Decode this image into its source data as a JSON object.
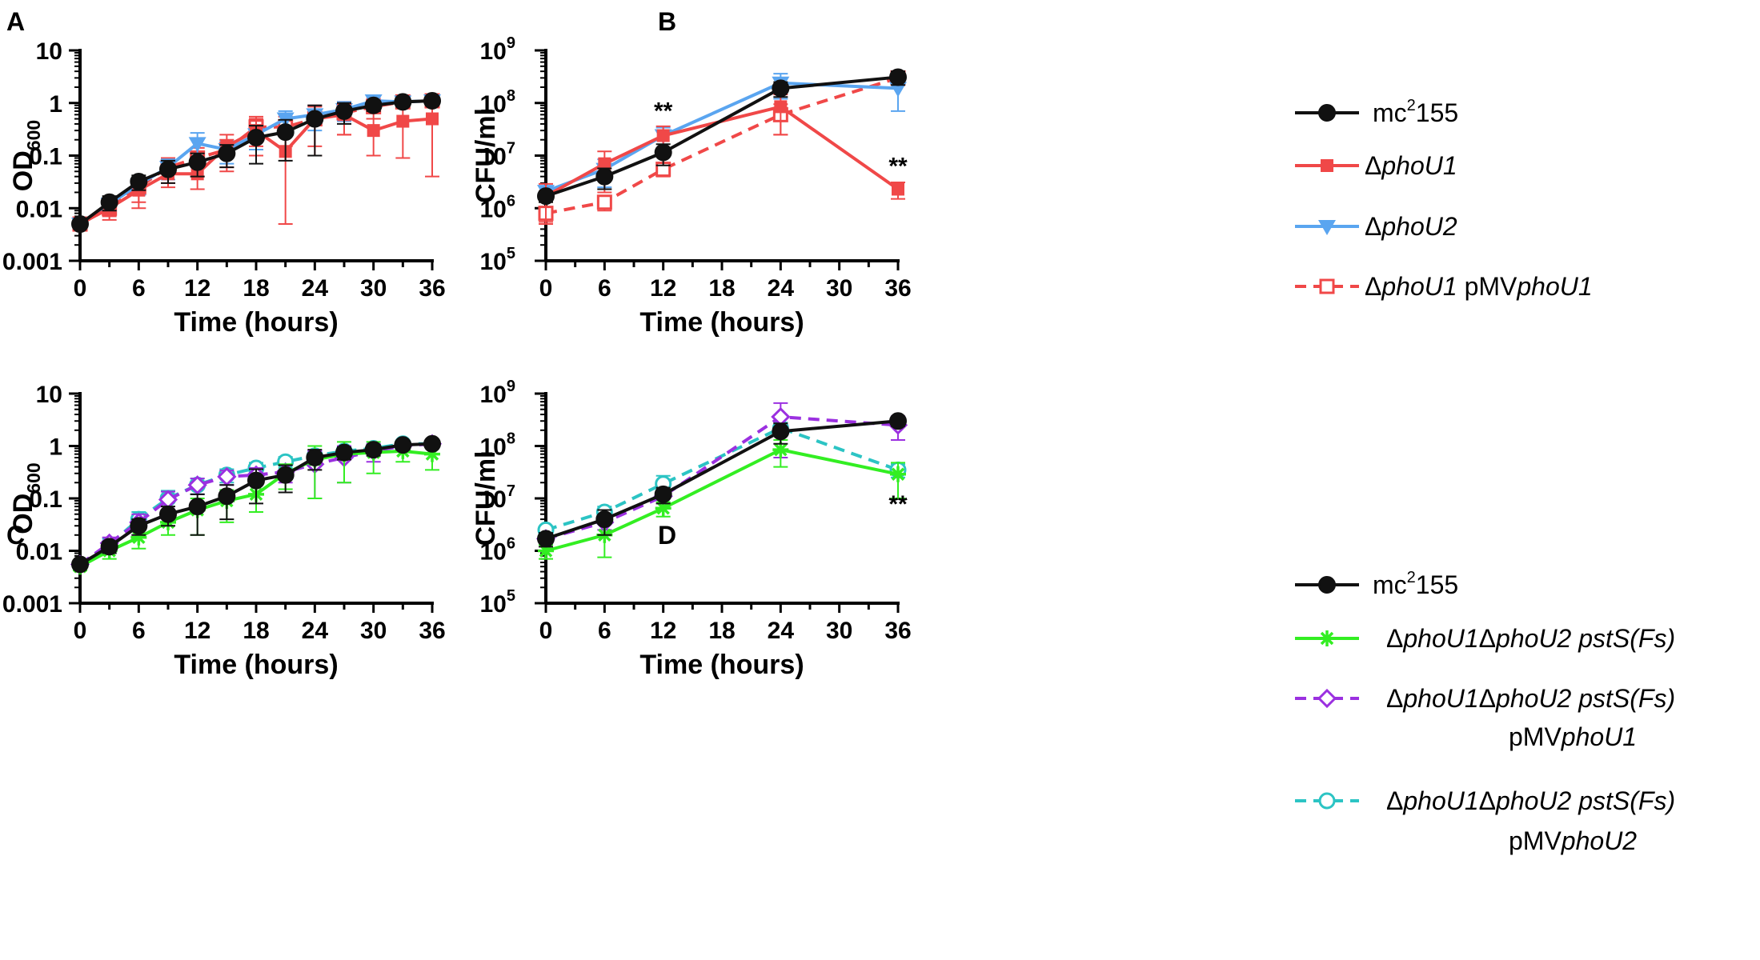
{
  "chart_data": [
    {
      "type": "line",
      "panel": "A",
      "xlabel": "Time (hours)",
      "ylabel": "OD600",
      "ylabel_main": "OD",
      "ylabel_sub": "600",
      "yscale": "log",
      "xlim": [
        0,
        36
      ],
      "ylim": [
        0.001,
        10
      ],
      "xticks": [
        "0",
        "6",
        "12",
        "18",
        "24",
        "30",
        "36"
      ],
      "yticks": [
        "0.001",
        "0.01",
        "0.1",
        "1",
        "10"
      ],
      "annotations": [],
      "series": [
        {
          "name": "ΔphoU1 pMVphoU1",
          "color": "#f04848",
          "dash": true,
          "marker": "square-open",
          "x": [
            0,
            3,
            6,
            9,
            12,
            15,
            18,
            21,
            24,
            27,
            30,
            33,
            36
          ],
          "y": [
            0.005,
            0.01,
            0.025,
            0.06,
            0.09,
            0.13,
            0.35,
            0.35,
            0.5,
            0.65,
            0.85,
            1.05,
            1.1
          ],
          "err": [
            0.0006,
            0.003,
            0.012,
            0.03,
            0.05,
            0.07,
            0.2,
            0.2,
            0.35,
            0.4,
            0.35,
            0.2,
            0.2
          ]
        },
        {
          "name": "ΔphoU2",
          "color": "#5aa5f0",
          "dash": false,
          "marker": "triangle-down",
          "x": [
            0,
            3,
            6,
            9,
            12,
            15,
            18,
            21,
            24,
            27,
            30,
            33,
            36
          ],
          "y": [
            0.005,
            0.012,
            0.028,
            0.06,
            0.17,
            0.13,
            0.25,
            0.5,
            0.6,
            0.75,
            1.1,
            1.05,
            1.1
          ],
          "err": [
            0.0006,
            0.003,
            0.01,
            0.025,
            0.1,
            0.06,
            0.12,
            0.2,
            0.3,
            0.3,
            0.25,
            0.2,
            0.2
          ]
        },
        {
          "name": "ΔphoU1",
          "color": "#f04848",
          "dash": false,
          "marker": "square",
          "x": [
            0,
            3,
            6,
            9,
            12,
            15,
            18,
            21,
            24,
            27,
            30,
            33,
            36
          ],
          "y": [
            0.005,
            0.01,
            0.022,
            0.045,
            0.045,
            0.15,
            0.3,
            0.12,
            0.5,
            0.6,
            0.3,
            0.45,
            0.5
          ],
          "err": [
            0.0006,
            0.004,
            0.012,
            0.02,
            0.022,
            0.1,
            0.2,
            0.115,
            0.4,
            0.35,
            0.2,
            0.36,
            0.46
          ]
        },
        {
          "name": "mc2155",
          "color": "#111111",
          "dash": false,
          "marker": "circle",
          "x": [
            0,
            3,
            6,
            9,
            12,
            15,
            18,
            21,
            24,
            27,
            30,
            33,
            36
          ],
          "y": [
            0.005,
            0.013,
            0.032,
            0.055,
            0.075,
            0.11,
            0.22,
            0.28,
            0.5,
            0.7,
            0.9,
            1.05,
            1.1
          ],
          "err": [
            0.0006,
            0.004,
            0.01,
            0.025,
            0.035,
            0.05,
            0.15,
            0.2,
            0.4,
            0.3,
            0.2,
            0.2,
            0.2
          ]
        }
      ]
    },
    {
      "type": "line",
      "panel": "B",
      "xlabel": "Time (hours)",
      "ylabel": "CFU/ml",
      "yscale": "log",
      "xlim": [
        0,
        36
      ],
      "ylim": [
        100000,
        1000000000
      ],
      "xticks": [
        "0",
        "6",
        "12",
        "18",
        "24",
        "30",
        "36"
      ],
      "ytick_exponents": [
        "5",
        "6",
        "7",
        "8",
        "9"
      ],
      "ytick_base": "10",
      "annotations": [
        {
          "text": "**",
          "x": 12,
          "y": 50000000
        },
        {
          "text": "**",
          "x": 36,
          "y": 4500000
        }
      ],
      "series": [
        {
          "name": "ΔphoU1 pMVphoU1",
          "color": "#f04848",
          "dash": true,
          "marker": "square-open",
          "x": [
            0,
            6,
            12,
            24,
            36
          ],
          "y": [
            800000,
            1300000,
            5500000,
            60000000,
            300000000
          ],
          "err": [
            250000,
            400000,
            1500000,
            35000000,
            80000000
          ]
        },
        {
          "name": "ΔphoU2",
          "color": "#5aa5f0",
          "dash": false,
          "marker": "triangle-down",
          "x": [
            0,
            6,
            12,
            24,
            36
          ],
          "y": [
            2100000,
            5500000,
            24000000,
            240000000,
            190000000
          ],
          "err": [
            500000,
            3000000,
            10000000,
            120000000,
            120000000
          ]
        },
        {
          "name": "ΔphoU1",
          "color": "#f04848",
          "dash": false,
          "marker": "square",
          "x": [
            0,
            6,
            12,
            24,
            36
          ],
          "y": [
            1700000,
            7000000,
            24000000,
            85000000,
            2300000
          ],
          "err": [
            1200000,
            5000000,
            12000000,
            60000000,
            800000
          ]
        },
        {
          "name": "mc2155",
          "color": "#111111",
          "dash": false,
          "marker": "circle",
          "x": [
            0,
            6,
            12,
            24,
            36
          ],
          "y": [
            1700000,
            4000000,
            11500000,
            190000000,
            310000000
          ],
          "err": [
            400000,
            1700000,
            5000000,
            60000000,
            90000000
          ]
        }
      ]
    },
    {
      "type": "line",
      "panel": "C",
      "xlabel": "Time (hours)",
      "ylabel": "OD600",
      "ylabel_main": "OD",
      "ylabel_sub": "600",
      "yscale": "log",
      "xlim": [
        0,
        36
      ],
      "ylim": [
        0.001,
        10
      ],
      "xticks": [
        "0",
        "6",
        "12",
        "18",
        "24",
        "30",
        "36"
      ],
      "yticks": [
        "0.001",
        "0.01",
        "0.1",
        "1",
        "10"
      ],
      "annotations": [],
      "series": [
        {
          "name": "ΔphoU1ΔphoU2 pstS(Fs) pMVphoU2",
          "color": "#2cc4c4",
          "dash": true,
          "marker": "circle-open",
          "x": [
            0,
            3,
            6,
            9,
            12,
            15,
            18,
            21,
            24,
            27,
            30,
            33,
            36
          ],
          "y": [
            0.0055,
            0.013,
            0.04,
            0.1,
            0.18,
            0.28,
            0.38,
            0.5,
            0.65,
            0.8,
            0.9,
            1.1,
            1.1
          ],
          "err": [
            0.0008,
            0.004,
            0.015,
            0.04,
            0.06,
            0.08,
            0.1,
            0.12,
            0.15,
            0.15,
            0.15,
            0.15,
            0.15
          ]
        },
        {
          "name": "ΔphoU1ΔphoU2 pstS(Fs) pMVphoU1",
          "color": "#9b30e0",
          "dash": true,
          "marker": "diamond-open",
          "x": [
            0,
            3,
            6,
            9,
            12,
            15,
            18,
            21,
            24,
            27,
            30,
            33,
            36
          ],
          "y": [
            0.0055,
            0.014,
            0.035,
            0.095,
            0.18,
            0.26,
            0.28,
            0.32,
            0.45,
            0.6,
            0.8,
            1.0,
            1.1
          ],
          "err": [
            0.0008,
            0.004,
            0.015,
            0.04,
            0.06,
            0.08,
            0.1,
            0.12,
            0.35,
            0.4,
            0.3,
            0.2,
            0.2
          ]
        },
        {
          "name": "ΔphoU1ΔphoU2 pstS(Fs)",
          "color": "#33ee22",
          "dash": false,
          "marker": "star",
          "x": [
            0,
            3,
            6,
            9,
            12,
            15,
            18,
            21,
            24,
            27,
            30,
            33,
            36
          ],
          "y": [
            0.005,
            0.01,
            0.018,
            0.035,
            0.06,
            0.09,
            0.12,
            0.3,
            0.55,
            0.7,
            0.75,
            0.8,
            0.7
          ],
          "err": [
            0.0008,
            0.003,
            0.007,
            0.015,
            0.04,
            0.055,
            0.065,
            0.15,
            0.45,
            0.5,
            0.45,
            0.3,
            0.35
          ]
        },
        {
          "name": "mc2155",
          "color": "#111111",
          "dash": false,
          "marker": "circle",
          "x": [
            0,
            3,
            6,
            9,
            12,
            15,
            18,
            21,
            24,
            27,
            30,
            33,
            36
          ],
          "y": [
            0.0055,
            0.012,
            0.03,
            0.05,
            0.07,
            0.11,
            0.22,
            0.28,
            0.6,
            0.75,
            0.85,
            1.05,
            1.1
          ],
          "err": [
            0.0008,
            0.003,
            0.01,
            0.02,
            0.05,
            0.07,
            0.14,
            0.15,
            0.25,
            0.2,
            0.2,
            0.2,
            0.2
          ]
        }
      ]
    },
    {
      "type": "line",
      "panel": "D",
      "xlabel": "Time (hours)",
      "ylabel": "CFU/ml",
      "yscale": "log",
      "xlim": [
        0,
        36
      ],
      "ylim": [
        100000,
        1000000000
      ],
      "xticks": [
        "0",
        "6",
        "12",
        "18",
        "24",
        "30",
        "36"
      ],
      "ytick_exponents": [
        "5",
        "6",
        "7",
        "8",
        "9"
      ],
      "ytick_base": "10",
      "annotations": [
        {
          "text": "**",
          "x": 36,
          "y": 5500000
        }
      ],
      "series": [
        {
          "name": "ΔphoU1ΔphoU2 pstS(Fs) pMVphoU2",
          "color": "#2cc4c4",
          "dash": true,
          "marker": "circle-open",
          "x": [
            0,
            6,
            12,
            24,
            36
          ],
          "y": [
            2500000,
            5500000,
            19000000,
            220000000,
            35000000
          ],
          "err": [
            400000,
            1500000,
            8000000,
            60000000,
            10000000
          ]
        },
        {
          "name": "ΔphoU1ΔphoU2 pstS(Fs) pMVphoU1",
          "color": "#9b30e0",
          "dash": true,
          "marker": "diamond-open",
          "x": [
            0,
            6,
            12,
            24,
            36
          ],
          "y": [
            1700000,
            3500000,
            11000000,
            360000000,
            250000000
          ],
          "err": [
            400000,
            1000000,
            3000000,
            300000000,
            120000000
          ]
        },
        {
          "name": "ΔphoU1ΔphoU2 pstS(Fs)",
          "color": "#33ee22",
          "dash": false,
          "marker": "star",
          "x": [
            0,
            6,
            12,
            24,
            36
          ],
          "y": [
            1000000,
            2000000,
            6500000,
            85000000,
            29000000
          ],
          "err": [
            300000,
            1250000,
            2000000,
            45000000,
            19000000
          ]
        },
        {
          "name": "mc2155",
          "color": "#111111",
          "dash": false,
          "marker": "circle",
          "x": [
            0,
            6,
            12,
            24,
            36
          ],
          "y": [
            1700000,
            4000000,
            12000000,
            190000000,
            300000000
          ],
          "err": [
            500000,
            2000000,
            4000000,
            80000000,
            60000000
          ]
        }
      ]
    }
  ],
  "panel_labels": {
    "a": "A",
    "b": "B",
    "c": "C",
    "d": "D"
  },
  "legend_top": [
    {
      "color": "#111111",
      "dash": false,
      "marker": "circle",
      "pre": "mc",
      "sup": "2",
      "mid": "155",
      "ital": "",
      "post": ""
    },
    {
      "color": "#f04848",
      "dash": false,
      "marker": "square",
      "pre": "Δ",
      "sup": "",
      "mid": "",
      "ital": "phoU1",
      "post": ""
    },
    {
      "color": "#5aa5f0",
      "dash": false,
      "marker": "triangle-down",
      "pre": "Δ",
      "sup": "",
      "mid": "",
      "ital": "phoU2",
      "post": ""
    },
    {
      "color": "#f04848",
      "dash": true,
      "marker": "square-open",
      "pre": "Δ",
      "sup": "",
      "mid": "",
      "ital": "phoU1",
      "post": " pMV",
      "ital2": "phoU1"
    }
  ],
  "legend_bottom": [
    {
      "color": "#111111",
      "dash": false,
      "marker": "circle",
      "line1_pre": "mc",
      "line1_sup": "2",
      "line1_mid": "155"
    },
    {
      "color": "#33ee22",
      "dash": false,
      "marker": "star",
      "line1_pre": "Δ",
      "line1_ital": "phoU1",
      "line1_pre2": "Δ",
      "line1_ital2": "phoU2 pstS(Fs)"
    },
    {
      "color": "#9b30e0",
      "dash": true,
      "marker": "diamond-open",
      "line1_pre": "Δ",
      "line1_ital": "phoU1",
      "line1_pre2": "Δ",
      "line1_ital2": "phoU2 pstS(Fs)",
      "line2_pre": "pMV",
      "line2_ital": "phoU1"
    },
    {
      "color": "#2cc4c4",
      "dash": true,
      "marker": "circle-open",
      "line1_pre": "Δ",
      "line1_ital": "phoU1",
      "line1_pre2": "Δ",
      "line1_ital2": "phoU2 pstS(Fs)",
      "line2_pre": "pMV",
      "line2_ital": "phoU2"
    }
  ]
}
